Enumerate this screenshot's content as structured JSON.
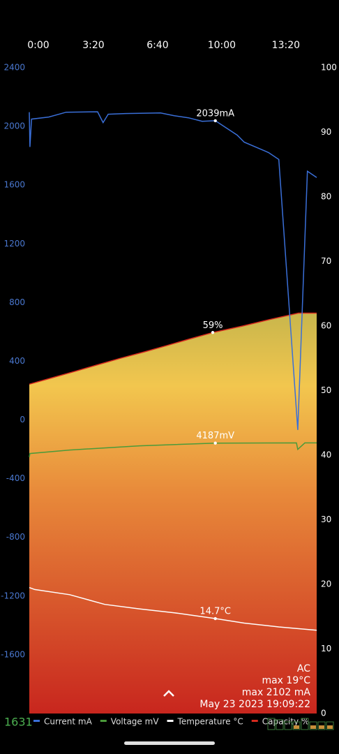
{
  "chart_data": {
    "type": "line",
    "xlim": [
      0,
      896
    ],
    "xticks": [
      {
        "value": 0,
        "label": "0:00"
      },
      {
        "value": 200,
        "label": "3:20"
      },
      {
        "value": 400,
        "label": "6:40"
      },
      {
        "value": 600,
        "label": "10:00"
      },
      {
        "value": 800,
        "label": "13:20"
      }
    ],
    "ylim": [
      -2000,
      2400
    ],
    "yticks": [
      2400,
      2000,
      1600,
      1200,
      800,
      400,
      0,
      -400,
      -800,
      -1200,
      -1600
    ],
    "y2lim": [
      0,
      100
    ],
    "y2ticks": [
      100,
      90,
      80,
      70,
      60,
      50,
      40,
      30,
      20,
      10,
      0
    ],
    "y3lim": [
      0,
      10000
    ],
    "series": [
      {
        "name": "Current mA",
        "color": "#3a6fd8",
        "axis": "y",
        "x": [
          0,
          2,
          7,
          61,
          115,
          213,
          230,
          246,
          300,
          409,
          452,
          496,
          539,
          580,
          648,
          670,
          746,
          778,
          837,
          867,
          896
        ],
        "values": [
          2097,
          1860,
          2050,
          2064,
          2097,
          2100,
          2026,
          2083,
          2088,
          2092,
          2073,
          2059,
          2035,
          2039,
          1941,
          1893,
          1822,
          1775,
          -68,
          1695,
          1652
        ],
        "value_labels": [
          null,
          null,
          null,
          null,
          null,
          null,
          null,
          null,
          null,
          null,
          null,
          null,
          null,
          "2039mA",
          null,
          null,
          null,
          null,
          null,
          null,
          null
        ]
      },
      {
        "name": "Voltage mV",
        "color": "#4a9a3a",
        "axis": "y3",
        "x": [
          0,
          2,
          126,
          343,
          580,
          833,
          837,
          859,
          896
        ],
        "values": [
          3970,
          4026,
          4080,
          4145,
          4187,
          4190,
          4090,
          4190,
          4190
        ],
        "value_labels": [
          null,
          null,
          null,
          null,
          "4187mV",
          null,
          null,
          null,
          null
        ]
      },
      {
        "name": "Temperature °C",
        "color": "#ffffff",
        "axis": "y2",
        "x": [
          0,
          17,
          126,
          235,
          343,
          452,
          580,
          670,
          778,
          896
        ],
        "values": [
          19.5,
          19.2,
          18.4,
          16.9,
          16.2,
          15.6,
          14.7,
          14.0,
          13.4,
          12.9
        ],
        "value_labels": [
          null,
          null,
          null,
          null,
          null,
          null,
          "14.7°C",
          null,
          null,
          null
        ]
      },
      {
        "name": "Capacity %",
        "color": "#d62a1e",
        "axis": "y2",
        "fill": "area",
        "x": [
          0,
          72,
          143,
          213,
          283,
          359,
          430,
          500,
          572,
          665,
          748,
          839,
          896
        ],
        "values": [
          51,
          52,
          53,
          54,
          55,
          56,
          57,
          58,
          59,
          60,
          61,
          62,
          62
        ],
        "value_labels": [
          null,
          null,
          null,
          null,
          null,
          null,
          null,
          null,
          "59%",
          null,
          null,
          null,
          null
        ]
      }
    ]
  },
  "status": {
    "charge_level": "1631",
    "info": [
      "AC",
      "max 19°C",
      "max 2102 mA",
      "May 23 2023 19:09:22"
    ]
  }
}
